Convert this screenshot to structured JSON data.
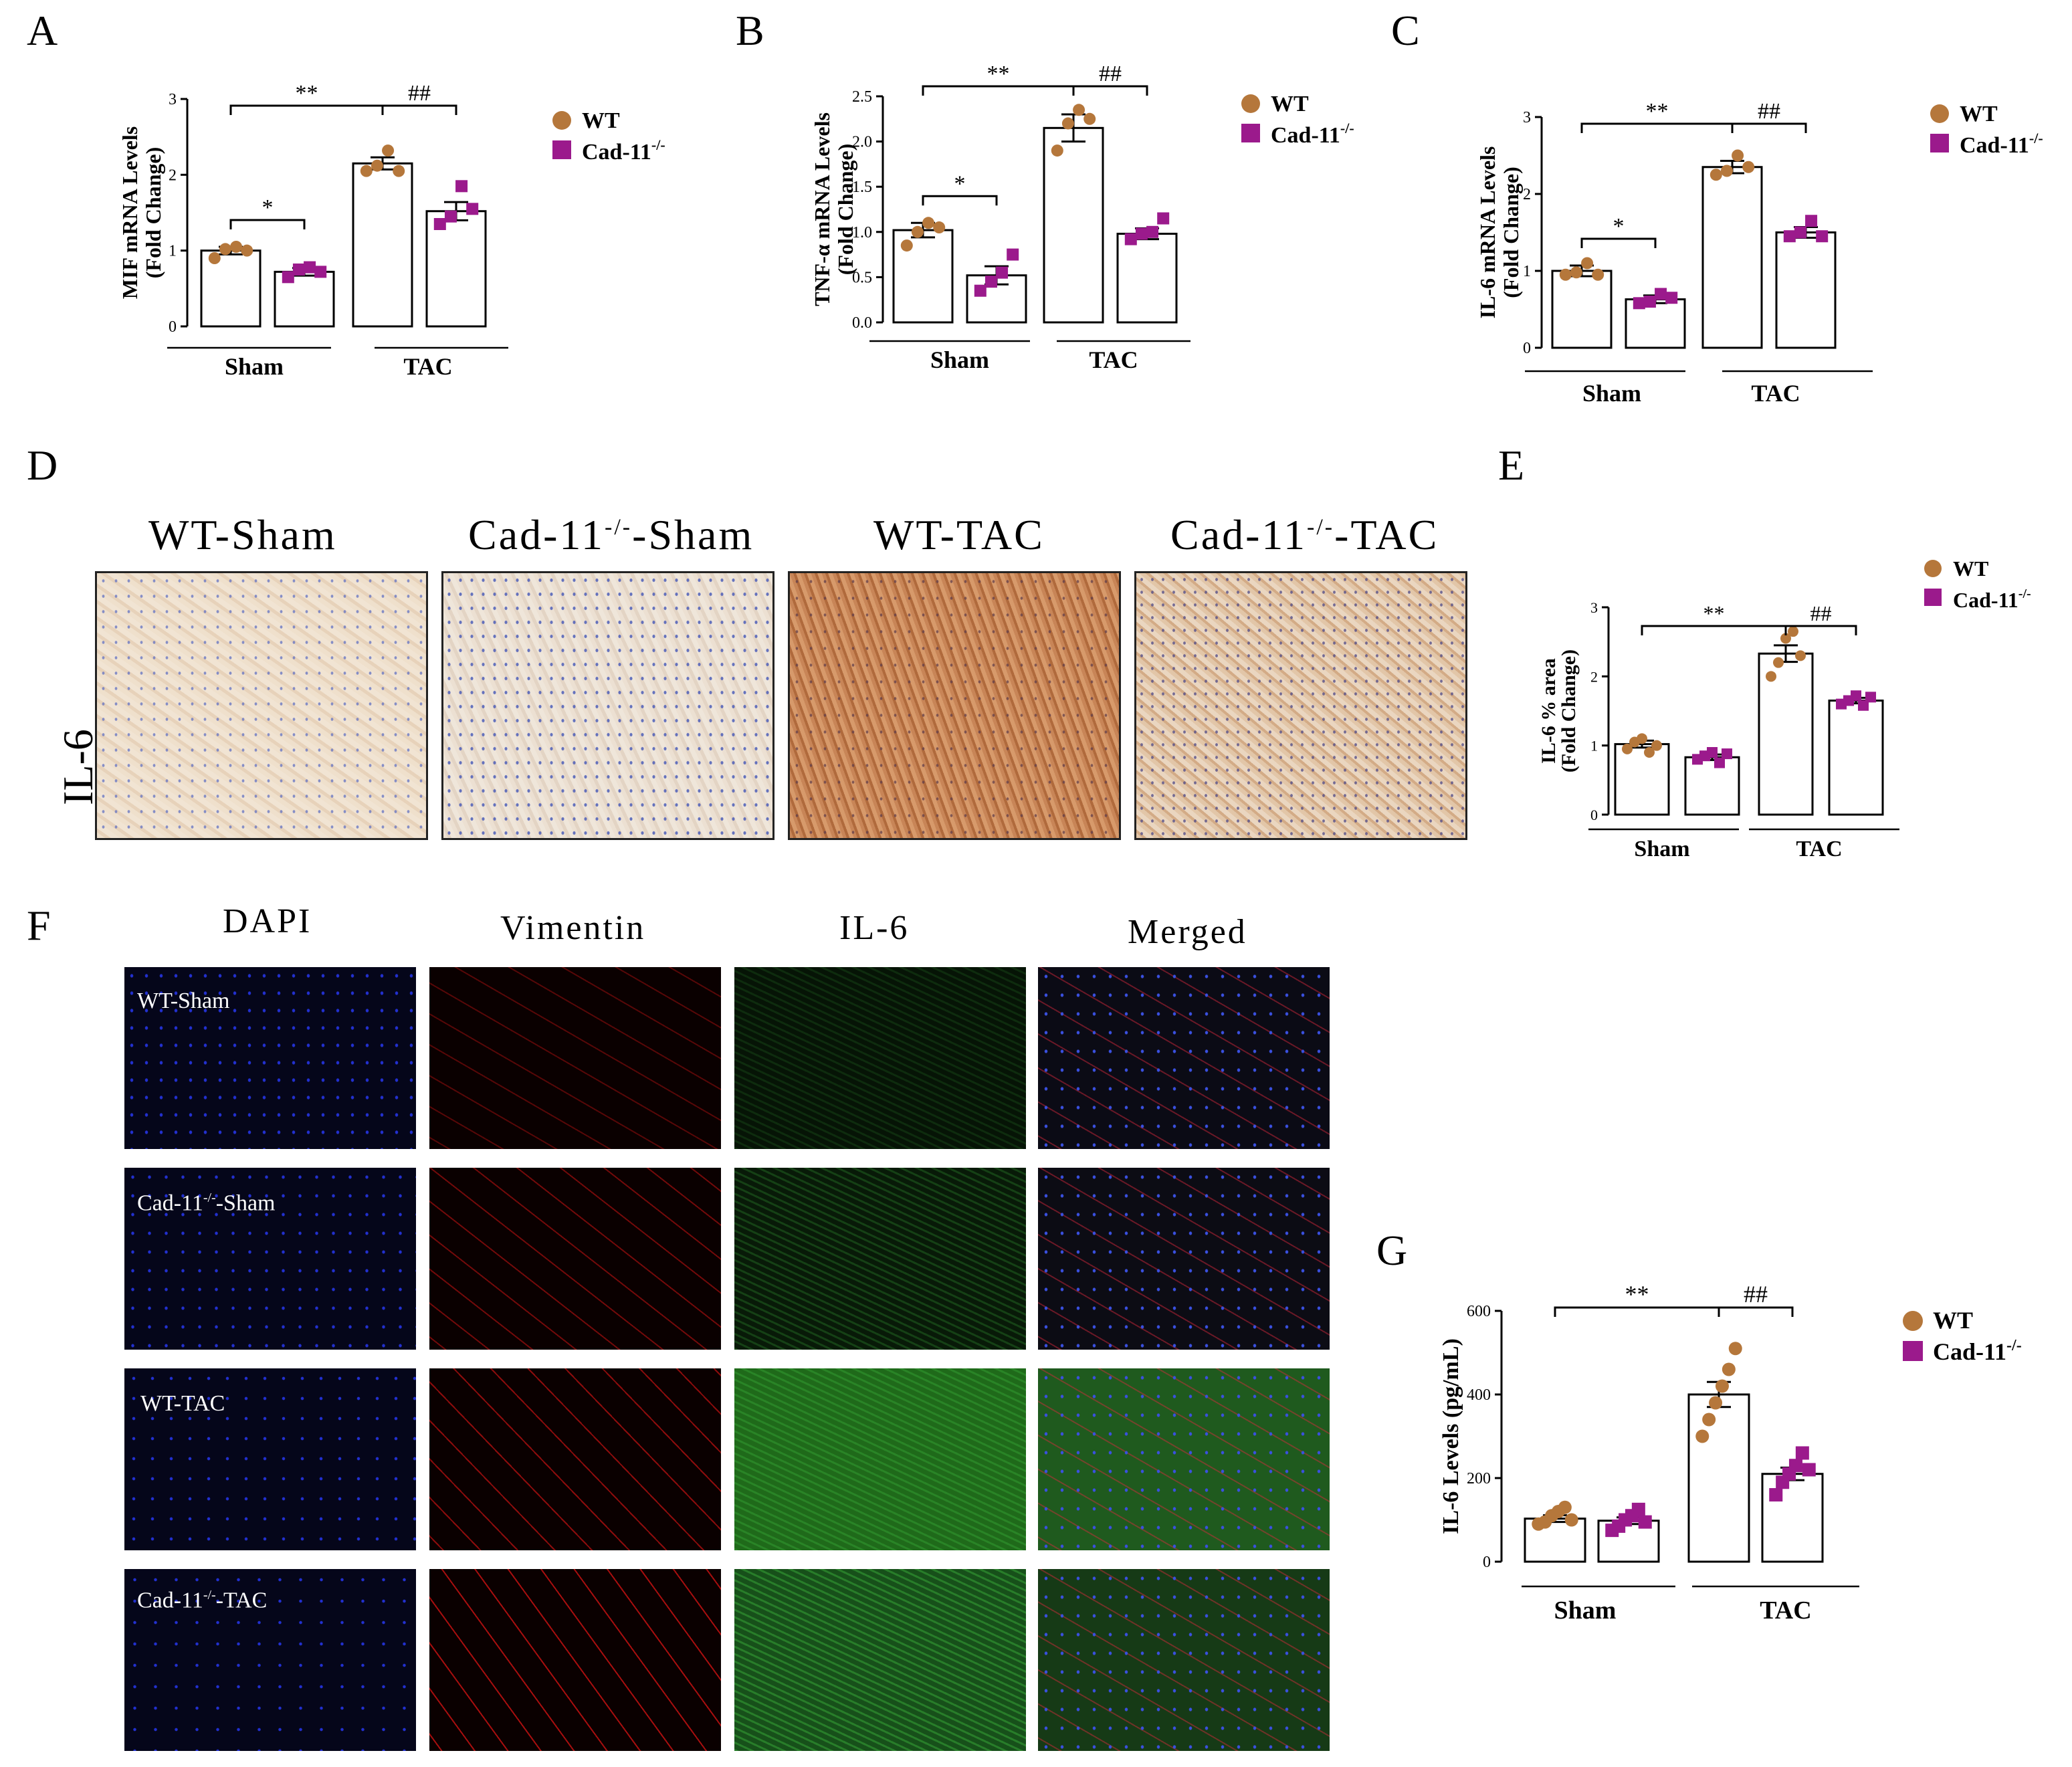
{
  "panels": {
    "A": "A",
    "B": "B",
    "C": "C",
    "D": "D",
    "E": "E",
    "F": "F",
    "G": "G"
  },
  "legend": {
    "wt": "WT",
    "cad": "Cad-11",
    "cad_sup": "-/-"
  },
  "colors": {
    "wt": "#b5773b",
    "cad": "#9b1a8c"
  },
  "groups": [
    "Sham",
    "TAC"
  ],
  "sig": {
    "star1": "*",
    "star2": "**",
    "hash2": "##"
  },
  "ihc": {
    "row_label": "IL-6",
    "titles": [
      "WT-Sham",
      "Cad-11",
      "-Sham",
      "WT-TAC",
      "Cad-11",
      "-TAC"
    ],
    "sup": "-/-"
  },
  "if": {
    "columns": [
      "DAPI",
      "Vimentin",
      "IL-6",
      "Merged"
    ],
    "rows": [
      "WT-Sham",
      "Cad-11",
      "-Sham",
      "WT-TAC",
      "Cad-11",
      "-TAC"
    ],
    "sup": "-/-"
  },
  "chart_data": [
    {
      "panel": "A",
      "type": "bar",
      "ylabel": [
        "MIF mRNA Levels",
        "(Fold Change)"
      ],
      "ylim": [
        0,
        3
      ],
      "yticks": [
        0,
        1,
        2,
        3
      ],
      "categories": [
        "Sham",
        "TAC"
      ],
      "series": [
        {
          "name": "WT",
          "values": [
            1.0,
            2.15
          ],
          "sem": [
            0.05,
            0.08
          ],
          "points": [
            [
              0.9,
              1.02,
              1.05,
              1.0
            ],
            [
              2.05,
              2.12,
              2.32,
              2.05
            ]
          ]
        },
        {
          "name": "Cad-11-/-",
          "values": [
            0.72,
            1.52
          ],
          "sem": [
            0.05,
            0.12
          ],
          "points": [
            [
              0.65,
              0.75,
              0.78,
              0.72
            ],
            [
              1.35,
              1.45,
              1.85,
              1.55
            ]
          ]
        }
      ]
    },
    {
      "panel": "B",
      "type": "bar",
      "ylabel": [
        "TNF-α mRNA Levels",
        "(Fold Change)"
      ],
      "ylim": [
        0,
        2.5
      ],
      "yticks": [
        0.0,
        0.5,
        1.0,
        1.5,
        2.0,
        2.5
      ],
      "categories": [
        "Sham",
        "TAC"
      ],
      "series": [
        {
          "name": "WT",
          "values": [
            1.02,
            2.15
          ],
          "sem": [
            0.08,
            0.15
          ],
          "points": [
            [
              0.85,
              1.0,
              1.1,
              1.05
            ],
            [
              1.9,
              2.2,
              2.35,
              2.25
            ]
          ]
        },
        {
          "name": "Cad-11-/-",
          "values": [
            0.52,
            0.98
          ],
          "sem": [
            0.1,
            0.06
          ],
          "points": [
            [
              0.35,
              0.45,
              0.55,
              0.75
            ],
            [
              0.92,
              0.98,
              1.0,
              1.15
            ]
          ]
        }
      ]
    },
    {
      "panel": "C",
      "type": "bar",
      "ylabel": [
        "IL-6 mRNA Levels",
        "(Fold Change)"
      ],
      "ylim": [
        0,
        3
      ],
      "yticks": [
        0,
        1,
        2,
        3
      ],
      "categories": [
        "Sham",
        "TAC"
      ],
      "series": [
        {
          "name": "WT",
          "values": [
            1.0,
            2.35
          ],
          "sem": [
            0.07,
            0.08
          ],
          "points": [
            [
              0.95,
              0.98,
              1.1,
              0.95
            ],
            [
              2.25,
              2.3,
              2.5,
              2.35
            ]
          ]
        },
        {
          "name": "Cad-11-/-",
          "values": [
            0.63,
            1.5
          ],
          "sem": [
            0.05,
            0.07
          ],
          "points": [
            [
              0.58,
              0.6,
              0.7,
              0.65
            ],
            [
              1.45,
              1.5,
              1.65,
              1.45
            ]
          ]
        }
      ]
    },
    {
      "panel": "E",
      "type": "bar",
      "ylabel": [
        "IL-6 % area",
        "(Fold Change)"
      ],
      "ylim": [
        0,
        3
      ],
      "yticks": [
        0,
        1,
        2,
        3
      ],
      "categories": [
        "Sham",
        "TAC"
      ],
      "series": [
        {
          "name": "WT",
          "values": [
            1.02,
            2.33
          ],
          "sem": [
            0.05,
            0.12
          ],
          "points": [
            [
              0.95,
              1.05,
              1.1,
              0.9,
              1.0
            ],
            [
              2.0,
              2.2,
              2.55,
              2.65,
              2.3
            ]
          ]
        },
        {
          "name": "Cad-11-/-",
          "values": [
            0.83,
            1.65
          ],
          "sem": [
            0.04,
            0.04
          ],
          "points": [
            [
              0.8,
              0.85,
              0.9,
              0.75,
              0.88
            ],
            [
              1.6,
              1.65,
              1.72,
              1.58,
              1.7
            ]
          ]
        }
      ]
    },
    {
      "panel": "G",
      "type": "bar",
      "ylabel": [
        "IL-6 Levels (pg/mL)"
      ],
      "ylim": [
        0,
        600
      ],
      "yticks": [
        0,
        200,
        400,
        600
      ],
      "categories": [
        "Sham",
        "TAC"
      ],
      "series": [
        {
          "name": "WT",
          "values": [
            103,
            400
          ],
          "sem": [
            8,
            30
          ],
          "points": [
            [
              90,
              95,
              110,
              120,
              130,
              100
            ],
            [
              300,
              340,
              380,
              420,
              460,
              510
            ]
          ]
        },
        {
          "name": "Cad-11-/-",
          "values": [
            98,
            210
          ],
          "sem": [
            8,
            15
          ],
          "points": [
            [
              75,
              85,
              100,
              110,
              125,
              95
            ],
            [
              160,
              190,
              210,
              230,
              260,
              220
            ]
          ]
        }
      ]
    }
  ]
}
